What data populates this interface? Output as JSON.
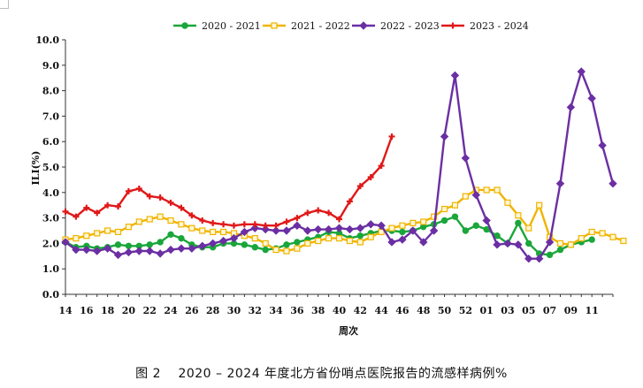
{
  "chart_data": {
    "type": "line",
    "title": "",
    "xlabel": "周次",
    "ylabel": "ILI(%)",
    "ylim": [
      0,
      10
    ],
    "yticks": [
      "0.0",
      "1.0",
      "2.0",
      "3.0",
      "4.0",
      "5.0",
      "6.0",
      "7.0",
      "8.0",
      "9.0",
      "10.0"
    ],
    "xticks": [
      "14",
      "16",
      "18",
      "20",
      "22",
      "24",
      "26",
      "28",
      "30",
      "32",
      "34",
      "36",
      "38",
      "40",
      "42",
      "44",
      "46",
      "48",
      "50",
      "52",
      "01",
      "03",
      "05",
      "07",
      "09",
      "11"
    ],
    "legend_position": "top-center",
    "grid": false,
    "series": [
      {
        "name": "2020 - 2021",
        "color": "#1aa63a",
        "marker": "circle",
        "values": [
          2.05,
          1.85,
          1.9,
          1.8,
          1.85,
          1.95,
          1.9,
          1.9,
          1.95,
          2.05,
          2.35,
          2.2,
          1.95,
          1.85,
          1.85,
          2.0,
          2.0,
          1.95,
          1.85,
          1.75,
          1.8,
          1.95,
          2.05,
          2.15,
          2.25,
          2.45,
          2.4,
          2.2,
          2.3,
          2.4,
          2.5,
          2.5,
          2.45,
          2.5,
          2.65,
          2.75,
          2.9,
          3.05,
          2.5,
          2.7,
          2.55,
          2.3,
          2.0,
          2.8,
          2.0,
          1.6,
          1.55,
          1.75,
          1.95,
          2.05,
          2.15
        ]
      },
      {
        "name": "2021 - 2022",
        "color": "#f0b400",
        "marker": "square",
        "values": [
          2.15,
          2.2,
          2.3,
          2.4,
          2.5,
          2.45,
          2.65,
          2.85,
          2.95,
          3.05,
          2.9,
          2.75,
          2.6,
          2.5,
          2.45,
          2.45,
          2.4,
          2.3,
          2.2,
          2.0,
          1.75,
          1.7,
          1.8,
          2.0,
          2.1,
          2.2,
          2.2,
          2.1,
          2.05,
          2.25,
          2.45,
          2.6,
          2.7,
          2.8,
          2.85,
          3.05,
          3.35,
          3.5,
          3.85,
          4.1,
          4.1,
          4.1,
          3.6,
          3.1,
          2.6,
          3.5,
          2.25,
          2.0,
          1.95,
          2.2,
          2.45,
          2.4,
          2.25,
          2.1
        ]
      },
      {
        "name": "2022 - 2023",
        "color": "#6b2fa3",
        "marker": "diamond",
        "values": [
          2.05,
          1.75,
          1.75,
          1.7,
          1.8,
          1.55,
          1.65,
          1.7,
          1.7,
          1.6,
          1.75,
          1.8,
          1.8,
          1.9,
          2.0,
          2.1,
          2.2,
          2.45,
          2.6,
          2.55,
          2.5,
          2.5,
          2.7,
          2.5,
          2.55,
          2.55,
          2.6,
          2.55,
          2.6,
          2.75,
          2.7,
          2.05,
          2.15,
          2.5,
          2.05,
          2.5,
          6.2,
          8.6,
          5.35,
          3.9,
          2.9,
          1.95,
          2.0,
          1.95,
          1.4,
          1.4,
          2.05,
          4.35,
          7.35,
          8.75,
          7.7,
          5.85,
          4.35
        ]
      },
      {
        "name": "2023 - 2024",
        "color": "#e01818",
        "marker": "plus",
        "values": [
          3.25,
          3.05,
          3.4,
          3.2,
          3.5,
          3.45,
          4.05,
          4.15,
          3.85,
          3.8,
          3.6,
          3.4,
          3.1,
          2.9,
          2.8,
          2.75,
          2.7,
          2.75,
          2.75,
          2.7,
          2.7,
          2.85,
          3.0,
          3.2,
          3.3,
          3.2,
          2.95,
          3.65,
          4.25,
          4.6,
          5.05,
          6.2
        ]
      }
    ]
  },
  "caption": "图 2 　2020 – 2024 年度北方省份哨点医院报告的流感样病例%"
}
